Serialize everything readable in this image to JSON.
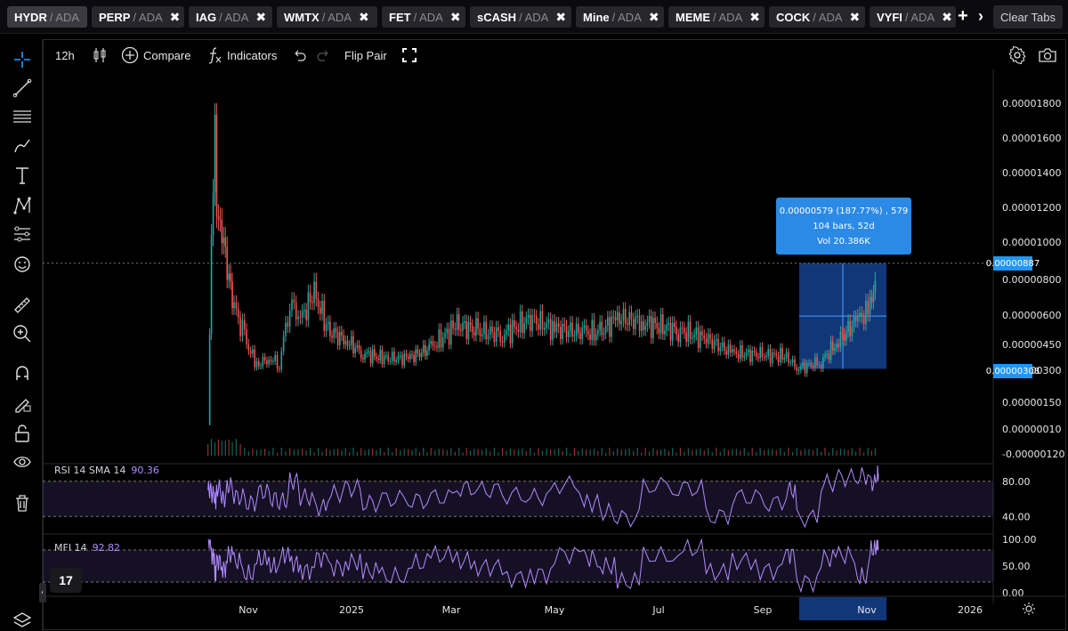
{
  "tabs": [
    {
      "symbol": "HYDR",
      "quote": "/ ADA",
      "active": true
    },
    {
      "symbol": "PERP",
      "quote": "/ ADA",
      "closable": true
    },
    {
      "symbol": "IAG",
      "quote": "/ ADA",
      "closable": true
    },
    {
      "symbol": "WMTX",
      "quote": "/ ADA",
      "closable": true
    },
    {
      "symbol": "FET",
      "quote": "/ ADA",
      "closable": true
    },
    {
      "symbol": "sCASH",
      "quote": "/ ADA",
      "closable": true
    },
    {
      "symbol": "Mine",
      "quote": "/ ADA",
      "closable": true
    },
    {
      "symbol": "MEME",
      "quote": "/ ADA",
      "closable": true
    },
    {
      "symbol": "COCK",
      "quote": "/ ADA",
      "closable": true
    },
    {
      "symbol": "VYFI",
      "quote": "/ ADA",
      "closable": true
    }
  ],
  "tab_close_glyph": "✖",
  "clear_tabs_label": "Clear Tabs",
  "toolbar": {
    "interval": "12h",
    "compare_label": "Compare",
    "indicators_label": "Indicators",
    "flip_pair_label": "Flip Pair"
  },
  "price_axis": {
    "labels": [
      "0.00001800",
      "0.00001600",
      "0.00001400",
      "0.00001200",
      "0.00001000",
      "0.00000800",
      "0.00000600",
      "0.00000450",
      "0.00000300",
      "0.00000150",
      "0.00000010",
      "-0.00000120"
    ],
    "scale": "log-like"
  },
  "price_tags": {
    "upper": "0.00000887",
    "lower": "0.00000308"
  },
  "measure_tooltip": {
    "line1": "0.00000579 (187.77%) , 579",
    "line2": "104 bars, 52d",
    "line3": "Vol 20.386K"
  },
  "time_axis": [
    "Nov",
    "2025",
    "Mar",
    "May",
    "Jul",
    "Sep",
    "Nov",
    "2026"
  ],
  "rsi": {
    "name": "RSI 14 SMA 14",
    "value": "90.36",
    "levels": [
      "80.00",
      "40.00"
    ]
  },
  "mfi": {
    "name": "MFI 14",
    "value": "92.82",
    "levels": [
      "100.00",
      "50.00",
      "0.00"
    ]
  },
  "colors": {
    "up": "#26a69a",
    "down": "#ef5350",
    "indicator": "#b18cff",
    "measure": "#2196f3"
  },
  "chart_data": {
    "type": "candlestick",
    "pair": "HYDR / ADA",
    "interval": "12h",
    "close_series": [
      [
        "2024-10-28",
        3e-07
      ],
      [
        "2024-10-30",
        9.5e-06
      ],
      [
        "2024-11-01",
        1.65e-05
      ],
      [
        "2024-11-02",
        1.2e-05
      ],
      [
        "2024-11-05",
        1.1e-05
      ],
      [
        "2024-11-08",
        8.5e-06
      ],
      [
        "2024-11-12",
        6.5e-06
      ],
      [
        "2024-11-18",
        4.8e-06
      ],
      [
        "2024-11-25",
        3.3e-06
      ],
      [
        "2024-12-02",
        3.7e-06
      ],
      [
        "2024-12-08",
        3.4e-06
      ],
      [
        "2024-12-14",
        6.8e-06
      ],
      [
        "2024-12-20",
        5.8e-06
      ],
      [
        "2024-12-28",
        7.2e-06
      ],
      [
        "2025-01-05",
        5.2e-06
      ],
      [
        "2025-01-15",
        4.7e-06
      ],
      [
        "2025-01-25",
        4e-06
      ],
      [
        "2025-02-05",
        3.7e-06
      ],
      [
        "2025-02-20",
        3.7e-06
      ],
      [
        "2025-03-05",
        4.3e-06
      ],
      [
        "2025-03-20",
        5.5e-06
      ],
      [
        "2025-04-01",
        5.2e-06
      ],
      [
        "2025-04-15",
        5e-06
      ],
      [
        "2025-05-01",
        5.8e-06
      ],
      [
        "2025-05-15",
        5.3e-06
      ],
      [
        "2025-06-01",
        5.1e-06
      ],
      [
        "2025-06-10",
        5.1e-06
      ],
      [
        "2025-06-20",
        5.9e-06
      ],
      [
        "2025-07-05",
        5.6e-06
      ],
      [
        "2025-07-25",
        5.2e-06
      ],
      [
        "2025-08-10",
        4.8e-06
      ],
      [
        "2025-08-25",
        4e-06
      ],
      [
        "2025-09-10",
        3.9e-06
      ],
      [
        "2025-09-25",
        3.8e-06
      ],
      [
        "2025-10-01",
        3.1e-06
      ],
      [
        "2025-10-15",
        3.5e-06
      ],
      [
        "2025-10-25",
        4.7e-06
      ],
      [
        "2025-11-05",
        5.8e-06
      ],
      [
        "2025-11-12",
        6.3e-06
      ],
      [
        "2025-11-16",
        8.7e-06
      ]
    ],
    "rsi": [
      70,
      65,
      58,
      72,
      60,
      75,
      62,
      55,
      68,
      60,
      58,
      80,
      62,
      50,
      66,
      72,
      55,
      60,
      58,
      62,
      72,
      70,
      64,
      62,
      76,
      55,
      45,
      38,
      75,
      72,
      40,
      62,
      55,
      70,
      38,
      78,
      84,
      86,
      78,
      90
    ],
    "mfi": [
      98,
      70,
      40,
      60,
      45,
      72,
      58,
      35,
      62,
      50,
      70,
      55,
      42,
      65,
      48,
      58,
      40,
      30,
      55,
      70,
      60,
      48,
      28,
      35,
      72,
      65,
      50,
      20,
      68,
      82,
      38,
      60,
      42,
      72,
      20,
      65,
      70,
      30,
      80,
      92
    ],
    "measure": {
      "from": "0.00000308",
      "to": "0.00000887",
      "change_pct": "187.77%",
      "bars": 104,
      "days": "52d"
    }
  }
}
